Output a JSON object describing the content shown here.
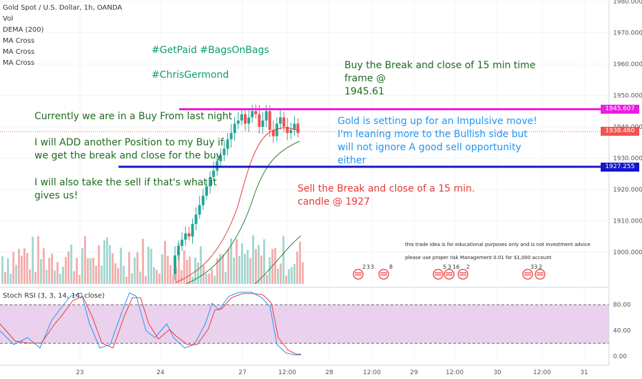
{
  "legend": {
    "title": "Gold Spot / U.S. Dollar, 1h, OANDA",
    "lines": [
      "Vol",
      "DEMA (200)",
      "MA Cross",
      "MA Cross",
      "MA Cross"
    ]
  },
  "annotations": {
    "hashtags1": "#GetPaid #BagsOnBags",
    "hashtags2": "#ChrisGermond",
    "buy_line1": "Buy the Break and close of 15 min time",
    "buy_line2": "frame @",
    "buy_line3": "1945.61",
    "current1": "Currently we are in a Buy From last night",
    "add1": "I will ADD another Position to my Buy if",
    "add2": "we get the break and close for the buy",
    "sell1": "I will also take the sell if that's what it",
    "sell2": "gives us!",
    "gold1": "Gold is setting up for an Impulsive move!",
    "gold2": "I'm leaning more to the Bullish side but",
    "gold3": "will not ignore A good sell opportunity",
    "gold4": "either",
    "sellbreak1": "Sell the Break and close of a 15 min.",
    "sellbreak2": "candle @ 1927",
    "disclaimer1": "this trade idea is for educational purposes only and is not investment advice",
    "disclaimer2": "please use proper risk Management 0.01 for $1,000 account"
  },
  "rsi_label": "Stoch RSI (3, 3, 14, 14, close)",
  "price_labels": {
    "upper": "1945.607",
    "current": "1938.460",
    "lower": "1927.255"
  },
  "colors": {
    "up": "#26a69a",
    "down": "#ef5350",
    "magenta": "#e91ee0",
    "navy": "#1515c8",
    "current": "#ef5350",
    "dema": "#2e7d32",
    "ma_red": "#e53935",
    "rsi_k": "#2196f3",
    "rsi_d": "#e53935",
    "rsi_band": "#e1bee7"
  },
  "chart_data": {
    "type": "candlestick",
    "title": "Gold Spot / U.S. Dollar, 1h, OANDA",
    "ylim": [
      1890,
      1980
    ],
    "y_ticks": [
      1900,
      1910,
      1920,
      1930,
      1940,
      1950,
      1960,
      1970,
      1980
    ],
    "y_tick_labels": [
      "1900.000",
      "1910.000",
      "1920.000",
      "1930.000",
      "1940.000",
      "1950.000",
      "1960.000",
      "1970.000",
      "1980.000"
    ],
    "x_tick_labels": [
      "23",
      "24",
      "27",
      "12:00",
      "28",
      "12:00",
      "29",
      "12:00",
      "30",
      "12:00",
      "31"
    ],
    "horizontal_levels": [
      {
        "label": "1945.607",
        "value": 1945.607
      },
      {
        "label": "1938.460",
        "value": 1938.46
      },
      {
        "label": "1927.255",
        "value": 1927.255
      }
    ],
    "rsi": {
      "name": "Stoch RSI (3, 3, 14, 14, close)",
      "ylim": [
        0,
        100
      ],
      "ticks": [
        "80.00",
        "40.00",
        "0.00"
      ],
      "tick_values": [
        80,
        40,
        0
      ],
      "band": [
        20,
        80
      ]
    },
    "event_counts": [
      "2",
      "3",
      "3",
      "8",
      "5",
      "3",
      "16",
      "2",
      "33",
      "2"
    ]
  }
}
